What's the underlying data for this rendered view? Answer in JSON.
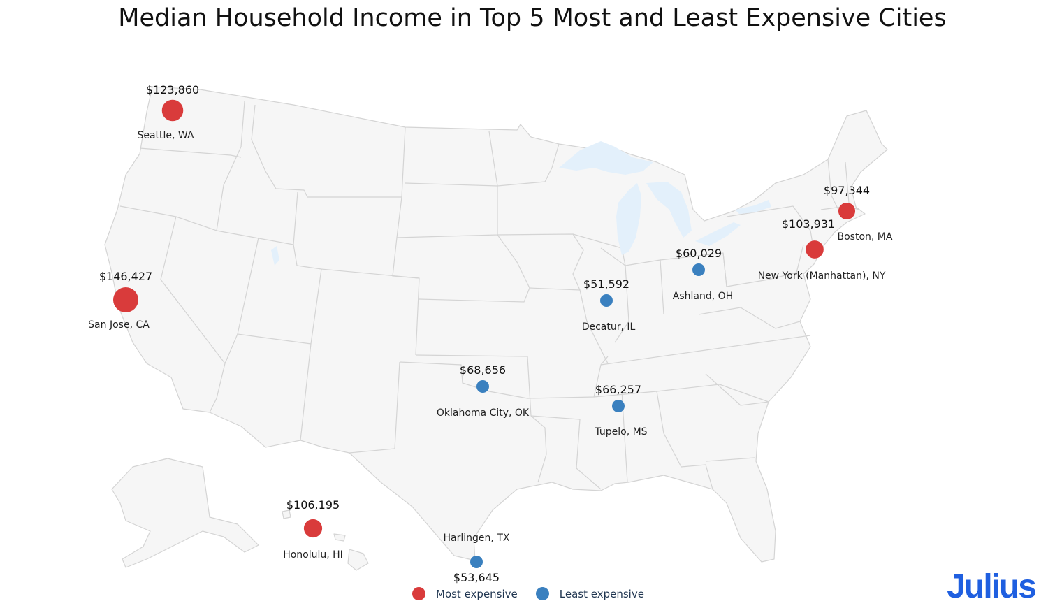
{
  "title": "Median Household Income in Top 5 Most and Least Expensive Cities",
  "colors": {
    "most": "#d93b3b",
    "least": "#3a80bf",
    "land": "#f6f6f6",
    "border": "#d4d4d4",
    "water": "#e3f0fb",
    "brand": "#1f5fe0"
  },
  "legend": {
    "most_label": "Most expensive",
    "least_label": "Least expensive",
    "placement": "bottom-center"
  },
  "brand": "Julius",
  "chart_data": {
    "type": "scatter",
    "map": "usa",
    "marker_size_encodes": "median_household_income",
    "series": [
      {
        "name": "Most expensive",
        "points": [
          {
            "city": "San Jose, CA",
            "value": "$146,427",
            "income": 146427,
            "lat": 37.34,
            "lon": -121.89
          },
          {
            "city": "Seattle, WA",
            "value": "$123,860",
            "income": 123860,
            "lat": 47.61,
            "lon": -122.33
          },
          {
            "city": "Honolulu, HI",
            "value": "$106,195",
            "income": 106195,
            "lat": 21.31,
            "lon": -157.86
          },
          {
            "city": "New York (Manhattan), NY",
            "value": "$103,931",
            "income": 103931,
            "lat": 40.78,
            "lon": -73.97
          },
          {
            "city": "Boston, MA",
            "value": "$97,344",
            "income": 97344,
            "lat": 42.36,
            "lon": -71.06
          }
        ]
      },
      {
        "name": "Least expensive",
        "points": [
          {
            "city": "Oklahoma City, OK",
            "value": "$68,656",
            "income": 68656,
            "lat": 35.47,
            "lon": -97.52
          },
          {
            "city": "Tupelo, MS",
            "value": "$66,257",
            "income": 66257,
            "lat": 34.26,
            "lon": -88.7
          },
          {
            "city": "Ashland, OH",
            "value": "$60,029",
            "income": 60029,
            "lat": 40.87,
            "lon": -82.32
          },
          {
            "city": "Harlingen, TX",
            "value": "$53,645",
            "income": 53645,
            "lat": 26.19,
            "lon": -97.7
          },
          {
            "city": "Decatur, IL",
            "value": "$51,592",
            "income": 51592,
            "lat": 39.84,
            "lon": -88.95
          }
        ]
      }
    ]
  }
}
